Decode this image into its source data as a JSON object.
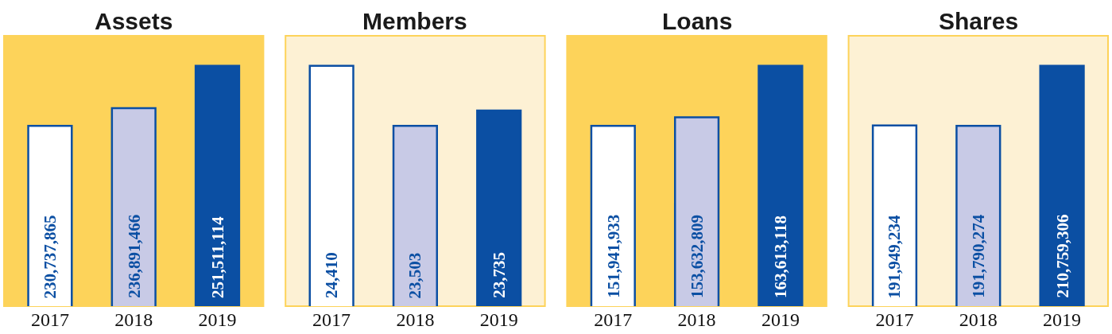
{
  "chart_data": [
    {
      "type": "bar",
      "title": "Assets",
      "categories": [
        "2017",
        "2018",
        "2019"
      ],
      "values": [
        230737865,
        236891466,
        251511114
      ],
      "colors": [
        "#ffffff",
        "#c8cae6",
        "#0b4fa3"
      ],
      "value_labels": [
        "230,737,865",
        "236,891,466",
        "251,511,114"
      ],
      "tick_labels": "x"
    },
    {
      "type": "bar",
      "title": "Members",
      "categories": [
        "2017",
        "2018",
        "2019"
      ],
      "values": [
        24410,
        23503,
        23735
      ],
      "colors": [
        "#ffffff",
        "#c8cae6",
        "#0b4fa3"
      ],
      "value_labels": [
        "24,410",
        "23,503",
        "23,735"
      ],
      "tick_labels": "x"
    },
    {
      "type": "bar",
      "title": "Loans",
      "categories": [
        "2017",
        "2018",
        "2019"
      ],
      "values": [
        151941933,
        153632809,
        163613118
      ],
      "colors": [
        "#ffffff",
        "#c8cae6",
        "#0b4fa3"
      ],
      "value_labels": [
        "151,941,933",
        "153,632,809",
        "163,613,118"
      ],
      "tick_labels": "x"
    },
    {
      "type": "bar",
      "title": "Shares",
      "categories": [
        "2017",
        "2018",
        "2019"
      ],
      "values": [
        191949234,
        191790274,
        210759306
      ],
      "colors": [
        "#ffffff",
        "#c8cae6",
        "#0b4fa3"
      ],
      "value_labels": [
        "191,949,234",
        "191,790,274",
        "210,759,306"
      ],
      "tick_labels": "x"
    }
  ]
}
